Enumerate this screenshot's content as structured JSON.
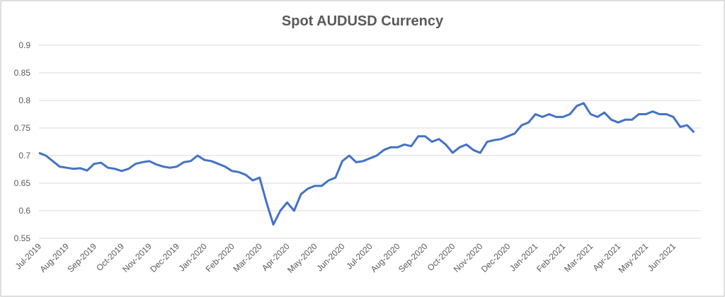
{
  "chart_data": {
    "type": "line",
    "title": "Spot AUDUSD Currency",
    "categories": [
      "Jul-2019",
      null,
      null,
      null,
      "Aug-2019",
      null,
      null,
      null,
      "Sep-2019",
      null,
      null,
      null,
      "Oct-2019",
      null,
      null,
      null,
      "Nov-2019",
      null,
      null,
      null,
      "Dec-2019",
      null,
      null,
      null,
      "Jan-2020",
      null,
      null,
      null,
      "Feb-2020",
      null,
      null,
      null,
      "Mar-2020",
      null,
      null,
      null,
      "Apr-2020",
      null,
      null,
      null,
      "May-2020",
      null,
      null,
      null,
      "Jun-2020",
      null,
      null,
      null,
      "Jul-2020",
      null,
      null,
      null,
      "Aug-2020",
      null,
      null,
      null,
      "Sep-2020",
      null,
      null,
      null,
      "Oct-2020",
      null,
      null,
      null,
      "Nov-2020",
      null,
      null,
      null,
      "Dec-2020",
      null,
      null,
      null,
      "Jan-2021",
      null,
      null,
      null,
      "Feb-2021",
      null,
      null,
      null,
      "Mar-2021",
      null,
      null,
      null,
      "Apr-2021",
      null,
      null,
      null,
      "May-2021",
      null,
      null,
      null,
      "Jun-2021",
      null,
      null,
      null
    ],
    "series": [
      {
        "name": "Spot AUDUSD",
        "color": "#4472c4",
        "values": [
          0.705,
          0.7,
          0.69,
          0.68,
          0.678,
          0.676,
          0.677,
          0.673,
          0.685,
          0.687,
          0.678,
          0.676,
          0.672,
          0.676,
          0.685,
          0.688,
          0.69,
          0.684,
          0.68,
          0.678,
          0.68,
          0.688,
          0.69,
          0.7,
          0.692,
          0.69,
          0.685,
          0.68,
          0.672,
          0.67,
          0.665,
          0.655,
          0.66,
          0.615,
          0.575,
          0.6,
          0.615,
          0.6,
          0.63,
          0.64,
          0.645,
          0.645,
          0.655,
          0.66,
          0.69,
          0.7,
          0.688,
          0.69,
          0.695,
          0.7,
          0.71,
          0.715,
          0.715,
          0.72,
          0.717,
          0.735,
          0.735,
          0.725,
          0.73,
          0.72,
          0.705,
          0.715,
          0.72,
          0.71,
          0.705,
          0.725,
          0.728,
          0.73,
          0.735,
          0.74,
          0.755,
          0.76,
          0.775,
          0.77,
          0.775,
          0.77,
          0.77,
          0.775,
          0.79,
          0.795,
          0.775,
          0.77,
          0.778,
          0.765,
          0.76,
          0.765,
          0.765,
          0.775,
          0.775,
          0.78,
          0.775,
          0.775,
          0.77,
          0.752,
          0.755,
          0.742
        ]
      }
    ],
    "ylim": [
      0.55,
      0.9
    ],
    "yticks": [
      0.55,
      0.6,
      0.65,
      0.7,
      0.75,
      0.8,
      0.85,
      0.9
    ],
    "grid": true
  }
}
